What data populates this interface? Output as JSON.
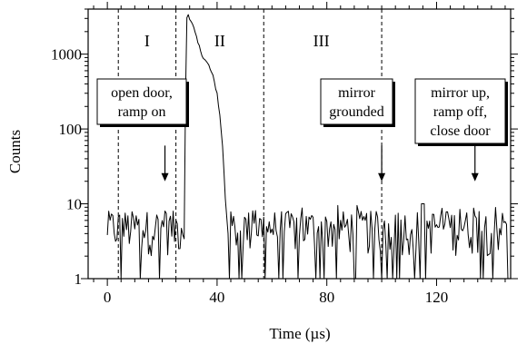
{
  "chart_data": {
    "type": "line",
    "title": "",
    "xlabel": "Time (µs)",
    "ylabel": "Counts",
    "xlim": [
      -7,
      147
    ],
    "ylim": [
      1,
      4000
    ],
    "yscale": "log",
    "grid": false,
    "legend": "none",
    "xticks": [
      {
        "value": 0,
        "label": "0"
      },
      {
        "value": 40,
        "label": "40"
      },
      {
        "value": 80,
        "label": "80"
      },
      {
        "value": 120,
        "label": "120"
      }
    ],
    "yticks": [
      {
        "value": 1,
        "label": "1"
      },
      {
        "value": 10,
        "label": "10"
      },
      {
        "value": 100,
        "label": "100"
      },
      {
        "value": 1000,
        "label": "1000"
      }
    ],
    "series": [
      {
        "color": "#000000",
        "x": [
          0,
          1,
          2,
          3,
          5,
          8,
          12,
          16,
          20,
          24,
          26,
          27,
          28,
          28.8,
          29.5,
          30.5,
          31.5,
          33,
          35,
          37,
          38.5,
          40,
          41,
          42,
          43,
          44,
          45,
          50,
          60,
          70,
          80,
          90,
          100,
          110,
          115,
          120,
          130,
          140,
          146
        ],
        "y": [
          1,
          3,
          5,
          5,
          4,
          5,
          4,
          5,
          4,
          5,
          1,
          4,
          5,
          3000,
          3400,
          2800,
          2200,
          1400,
          900,
          700,
          500,
          300,
          150,
          60,
          12,
          4,
          5,
          4,
          5,
          5,
          4,
          5,
          4,
          5,
          8,
          5,
          4,
          5,
          4
        ],
        "baseline_noise": {
          "typical": 5,
          "min": 1,
          "max": 10
        }
      }
    ],
    "region_boundaries": [
      4,
      25,
      57,
      100
    ],
    "region_labels": [
      {
        "label": "I",
        "x": 14.5
      },
      {
        "label": "II",
        "x": 41
      },
      {
        "label": "III",
        "x": 78
      }
    ],
    "annotations": [
      {
        "lines": [
          "open door,",
          "ramp on"
        ],
        "arrow_x": 21,
        "arrow_from": 60,
        "arrow_to": 20
      },
      {
        "lines": [
          "mirror",
          "grounded"
        ],
        "arrow_x": 100,
        "arrow_from": 60,
        "arrow_to": 20
      },
      {
        "lines": [
          "mirror up,",
          "ramp off,",
          "close door"
        ],
        "arrow_x": 134,
        "arrow_from": 60,
        "arrow_to": 20
      }
    ]
  }
}
